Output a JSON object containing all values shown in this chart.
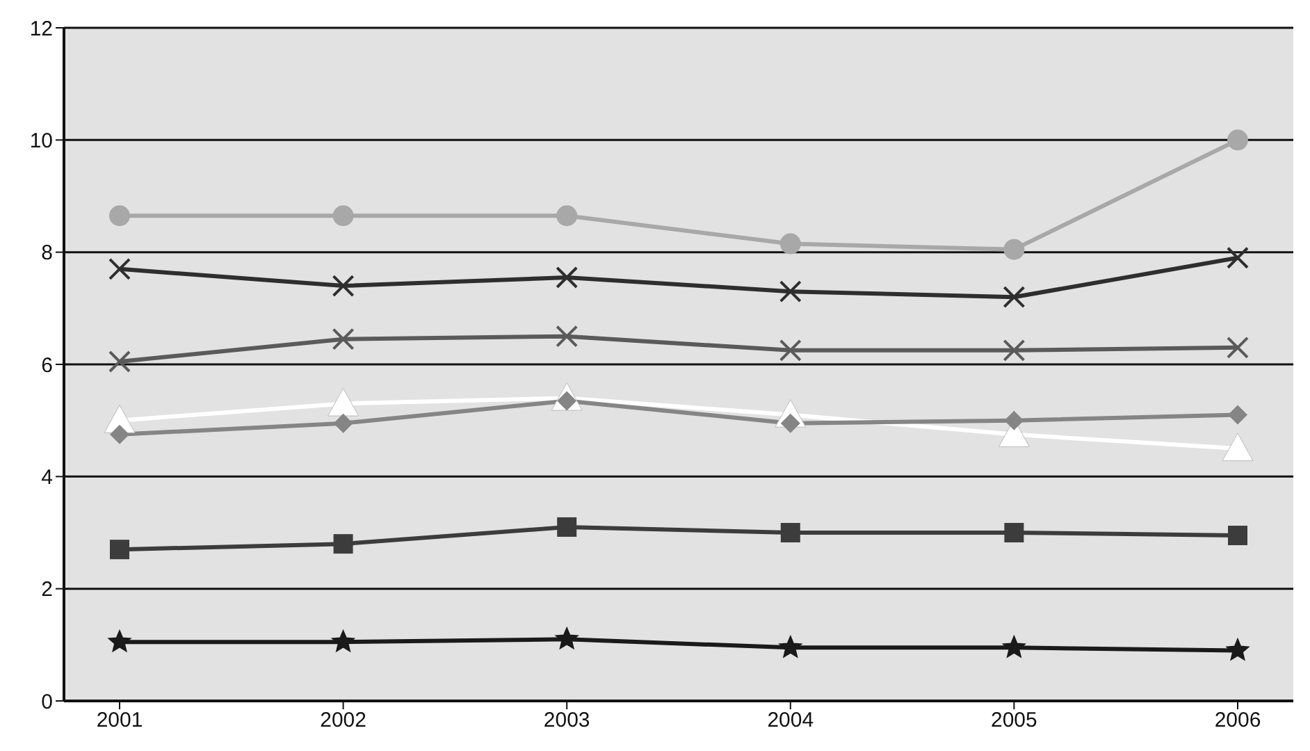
{
  "chart_data": {
    "type": "line",
    "categories": [
      "2001",
      "2002",
      "2003",
      "2004",
      "2005",
      "2006"
    ],
    "series": [
      {
        "color": "#a8a8a8",
        "marker": "circle",
        "values": [
          8.65,
          8.65,
          8.65,
          8.15,
          8.05,
          10.0
        ]
      },
      {
        "color": "#2e2e2e",
        "marker": "cross",
        "values": [
          7.7,
          7.4,
          7.55,
          7.3,
          7.2,
          7.9
        ]
      },
      {
        "color": "#5a5a5a",
        "marker": "cross",
        "values": [
          6.05,
          6.45,
          6.5,
          6.25,
          6.25,
          6.3
        ]
      },
      {
        "color": "#ffffff",
        "marker": "triangle",
        "values": [
          5.0,
          5.3,
          5.4,
          5.1,
          4.75,
          4.5
        ]
      },
      {
        "color": "#858585",
        "marker": "diamond",
        "values": [
          4.75,
          4.95,
          5.35,
          4.95,
          5.0,
          5.1
        ]
      },
      {
        "color": "#3c3c3c",
        "marker": "square",
        "values": [
          2.7,
          2.8,
          3.1,
          3.0,
          3.0,
          2.95
        ]
      },
      {
        "color": "#1a1a1a",
        "marker": "star",
        "values": [
          1.05,
          1.05,
          1.1,
          0.95,
          0.95,
          0.9
        ]
      }
    ],
    "ylim": [
      0,
      12
    ],
    "yticks": [
      0,
      2,
      4,
      6,
      8,
      10,
      12
    ],
    "grid": "y"
  }
}
